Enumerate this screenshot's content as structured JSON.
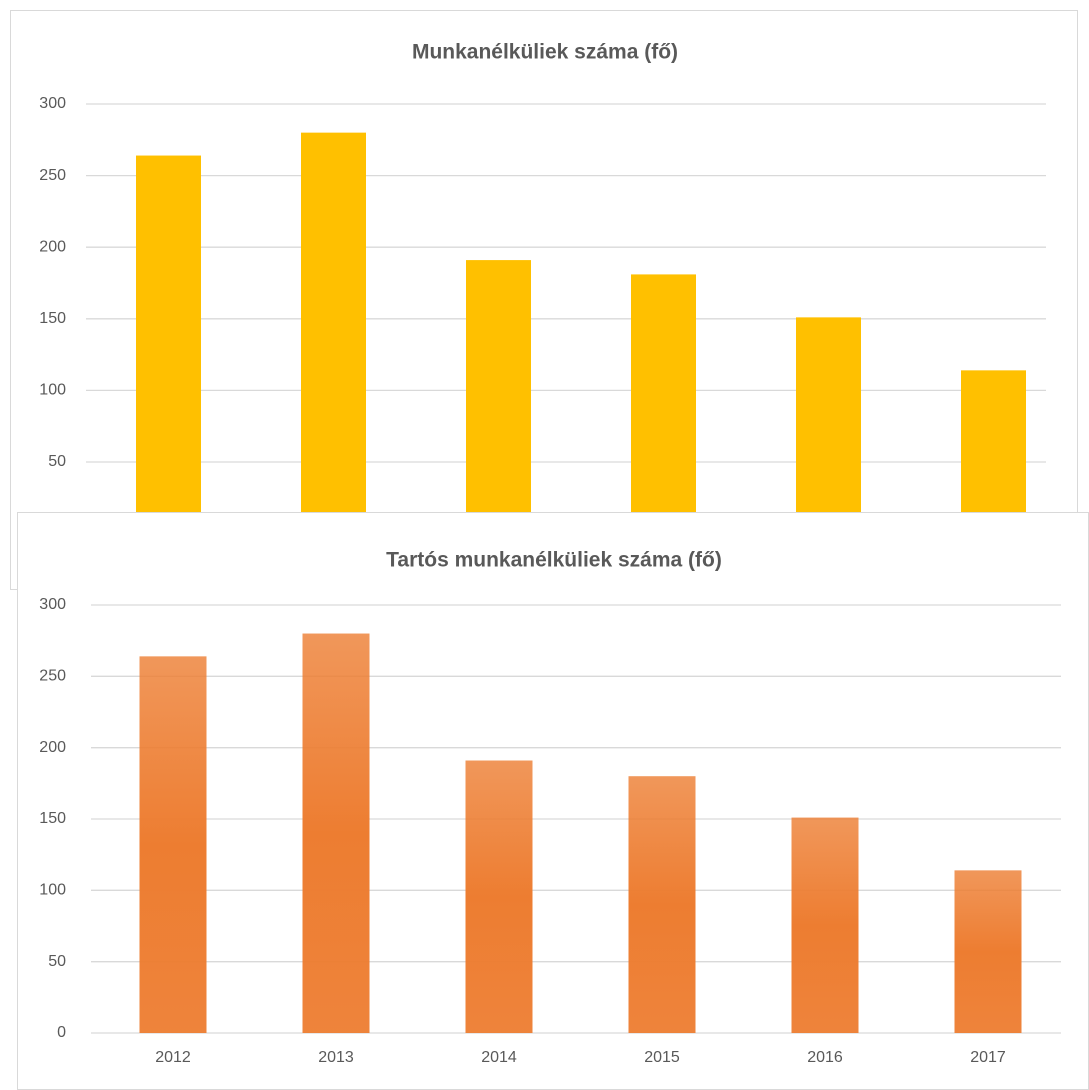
{
  "chart_data": [
    {
      "type": "bar",
      "title": "Munkanélküliek száma (fő)",
      "categories": [
        null,
        null,
        null,
        null,
        null,
        null
      ],
      "values": [
        264,
        280,
        191,
        181,
        151,
        114
      ],
      "color": "#ffc000",
      "gradient": false,
      "ylim": [
        0,
        300
      ],
      "yticks": [
        50,
        100,
        150,
        200,
        250,
        300
      ],
      "grid": true
    },
    {
      "type": "bar",
      "title": "Tartós munkanélküliek száma (fő)",
      "categories": [
        "2012",
        "2013",
        "2014",
        "2015",
        "2016",
        "2017"
      ],
      "values": [
        264,
        280,
        191,
        180,
        151,
        114
      ],
      "color": "#ed7d31",
      "gradient": true,
      "ylim": [
        0,
        300
      ],
      "yticks": [
        0,
        50,
        100,
        150,
        200,
        250,
        300
      ],
      "grid": true
    }
  ]
}
